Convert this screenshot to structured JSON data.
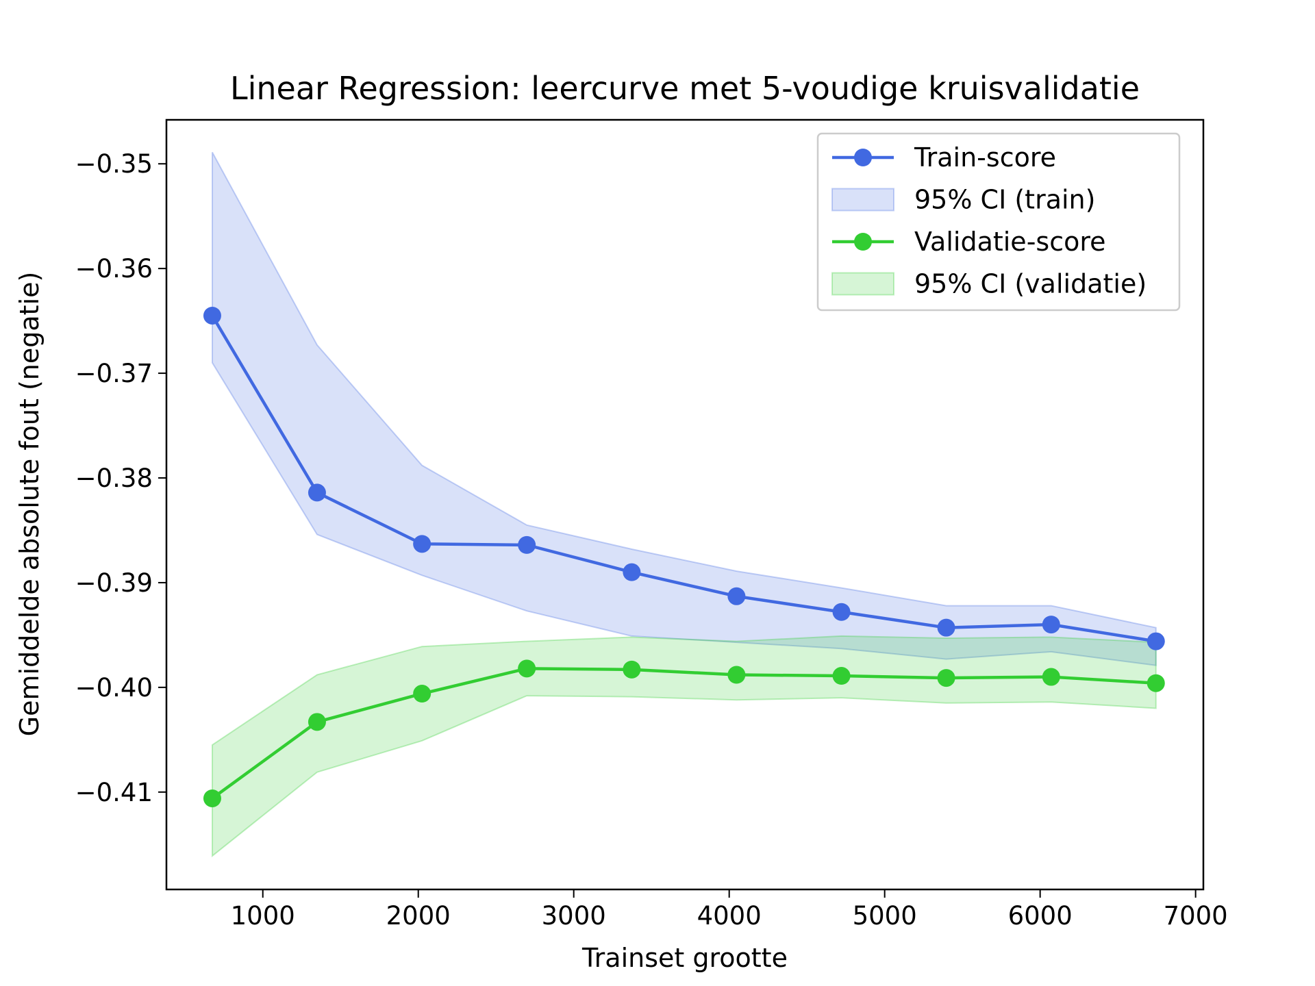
{
  "chart_data": {
    "type": "line",
    "title": "Linear Regression: leercurve met 5-voudige kruisvalidatie",
    "xlabel": "Trainset grootte",
    "ylabel": "Gemiddelde absolute fout (negatie)",
    "xlim": [
      380,
      7050
    ],
    "ylim": [
      -0.4193,
      -0.3458
    ],
    "xticks": [
      1000,
      2000,
      3000,
      4000,
      5000,
      6000,
      7000
    ],
    "xtick_labels": [
      "1000",
      "2000",
      "3000",
      "4000",
      "5000",
      "6000",
      "7000"
    ],
    "yticks": [
      -0.35,
      -0.36,
      -0.37,
      -0.38,
      -0.39,
      -0.4,
      -0.41
    ],
    "ytick_labels": [
      "−0.35",
      "−0.36",
      "−0.37",
      "−0.38",
      "−0.39",
      "−0.40",
      "−0.41"
    ],
    "grid": false,
    "legend_position": "top-right",
    "x": [
      675,
      1349,
      2024,
      2698,
      3373,
      4047,
      4722,
      5396,
      6071,
      6745
    ],
    "series": [
      {
        "name": "Train-score",
        "color": "#4169e1",
        "values": [
          -0.3645,
          -0.3814,
          -0.3863,
          -0.3864,
          -0.389,
          -0.3913,
          -0.3928,
          -0.3943,
          -0.394,
          -0.3956
        ]
      },
      {
        "name": "Validatie-score",
        "color": "#32cd32",
        "values": [
          -0.4106,
          -0.4033,
          -0.4006,
          -0.3982,
          -0.3983,
          -0.3988,
          -0.3989,
          -0.3991,
          -0.399,
          -0.3996
        ]
      }
    ],
    "bands": [
      {
        "name": "95% CI (train)",
        "color": "#4169e1",
        "opacity": 0.2,
        "upper": [
          -0.3489,
          -0.3673,
          -0.3788,
          -0.3845,
          -0.3868,
          -0.3889,
          -0.3905,
          -0.3922,
          -0.3922,
          -0.3943
        ],
        "lower": [
          -0.369,
          -0.3854,
          -0.3893,
          -0.3927,
          -0.3951,
          -0.3957,
          -0.3963,
          -0.3973,
          -0.3966,
          -0.3979
        ]
      },
      {
        "name": "95% CI (validatie)",
        "color": "#32cd32",
        "opacity": 0.2,
        "upper": [
          -0.4055,
          -0.3988,
          -0.3961,
          -0.3956,
          -0.3952,
          -0.3956,
          -0.3951,
          -0.3953,
          -0.3952,
          -0.3957
        ],
        "lower": [
          -0.4161,
          -0.4081,
          -0.4051,
          -0.4008,
          -0.4009,
          -0.4012,
          -0.401,
          -0.4015,
          -0.4014,
          -0.402
        ]
      }
    ]
  }
}
